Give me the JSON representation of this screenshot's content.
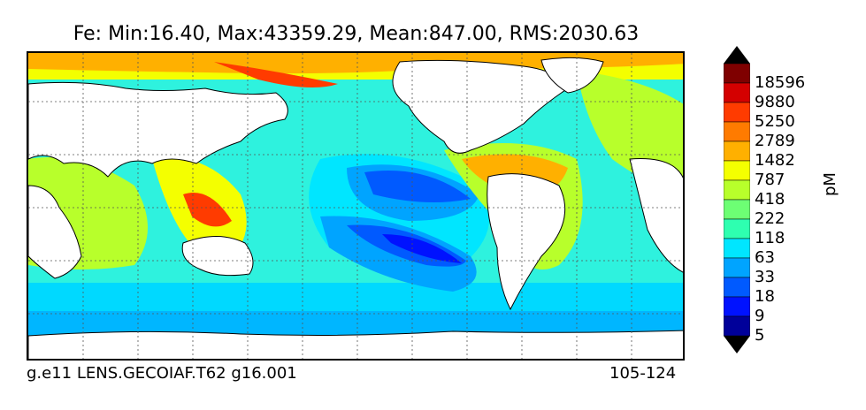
{
  "title": "Fe: Min:16.40, Max:43359.29, Mean:847.00, RMS:2030.63",
  "footer": {
    "left": "g.e11 LENS.GECOIAF.T62 g16.001",
    "right": "105-124"
  },
  "colorbar": {
    "unit": "pM",
    "ticks": [
      "18596",
      "9880",
      "5250",
      "2789",
      "1482",
      "787",
      "418",
      "222",
      "118",
      "63",
      "33",
      "18",
      "9",
      "5"
    ],
    "colors": [
      "#000000",
      "#7f0000",
      "#d40000",
      "#ff3b00",
      "#ff7b00",
      "#ffb000",
      "#f4ff00",
      "#b8ff2b",
      "#6dff74",
      "#2effb0",
      "#00e6ff",
      "#00a4ff",
      "#005aff",
      "#0012ff",
      "#00009a",
      "#000000"
    ]
  },
  "map": {
    "variable": "Fe",
    "land_color": "#ffffff",
    "coast_color": "#000000",
    "grid": "dotted"
  }
}
